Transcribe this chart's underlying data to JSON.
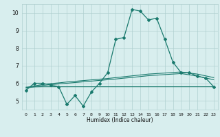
{
  "title": "",
  "xlabel": "Humidex (Indice chaleur)",
  "x_values": [
    0,
    1,
    2,
    3,
    4,
    5,
    6,
    7,
    8,
    9,
    10,
    11,
    12,
    13,
    14,
    15,
    16,
    17,
    18,
    19,
    20,
    21,
    22,
    23
  ],
  "main_line": [
    5.6,
    6.0,
    6.0,
    5.9,
    5.8,
    4.8,
    5.3,
    4.7,
    5.5,
    6.0,
    6.6,
    8.5,
    8.6,
    10.2,
    10.1,
    9.6,
    9.7,
    8.5,
    7.2,
    6.6,
    6.6,
    6.4,
    6.3,
    5.8
  ],
  "line2": [
    5.75,
    5.85,
    5.93,
    5.98,
    6.02,
    6.07,
    6.11,
    6.15,
    6.19,
    6.23,
    6.27,
    6.32,
    6.37,
    6.42,
    6.47,
    6.52,
    6.55,
    6.58,
    6.61,
    6.64,
    6.58,
    6.52,
    6.42,
    6.32
  ],
  "line3": [
    5.72,
    5.8,
    5.87,
    5.92,
    5.96,
    6.0,
    6.04,
    6.08,
    6.12,
    6.16,
    6.2,
    6.24,
    6.29,
    6.33,
    6.38,
    6.43,
    6.46,
    6.49,
    6.52,
    6.55,
    6.48,
    6.4,
    6.3,
    6.2
  ],
  "line4": [
    5.78,
    5.79,
    5.8,
    5.8,
    5.8,
    5.8,
    5.8,
    5.8,
    5.8,
    5.8,
    5.8,
    5.8,
    5.8,
    5.8,
    5.8,
    5.8,
    5.8,
    5.8,
    5.8,
    5.8,
    5.8,
    5.8,
    5.8,
    5.8
  ],
  "bg_color": "#d8eeee",
  "grid_color": "#b0d0d0",
  "line_color": "#1a7a6e",
  "ylim": [
    4.5,
    10.5
  ],
  "yticks": [
    5,
    6,
    7,
    8,
    9,
    10
  ],
  "xlim": [
    -0.5,
    23.5
  ],
  "xticks": [
    0,
    1,
    2,
    3,
    4,
    5,
    6,
    7,
    8,
    9,
    10,
    11,
    12,
    13,
    14,
    15,
    16,
    17,
    18,
    19,
    20,
    21,
    22,
    23
  ]
}
